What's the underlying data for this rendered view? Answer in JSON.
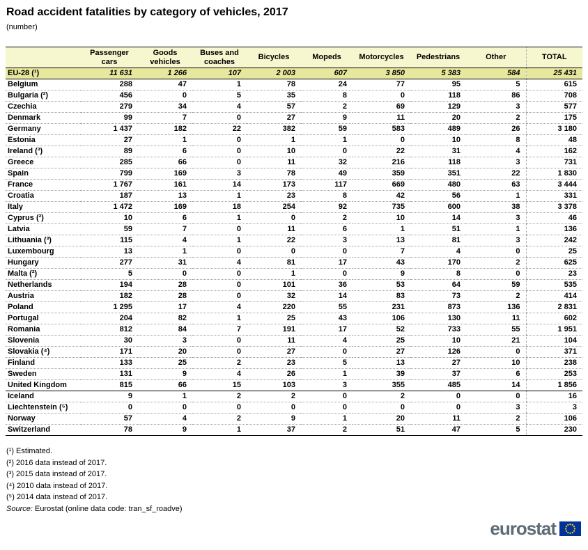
{
  "header": {
    "title": "Road accident fatalities by category of vehicles, 2017",
    "subtitle": "(number)"
  },
  "chart_data": {
    "type": "table",
    "title": "Road accident fatalities by category of vehicles, 2017",
    "unit": "number",
    "columns": [
      "Passenger cars",
      "Goods vehicles",
      "Buses and coaches",
      "Bicycles",
      "Mopeds",
      "Motorcycles",
      "Pedestrians",
      "Other",
      "TOTAL"
    ],
    "aggregate_row": {
      "label": "EU-28 (¹)",
      "values": [
        "11 631",
        "1 266",
        "107",
        "2 003",
        "607",
        "3 850",
        "5 383",
        "584",
        "25 431"
      ]
    },
    "eu_rows": [
      {
        "label": "Belgium",
        "values": [
          "288",
          "47",
          "1",
          "78",
          "24",
          "77",
          "95",
          "5",
          "615"
        ]
      },
      {
        "label": "Bulgaria (²)",
        "values": [
          "456",
          "0",
          "5",
          "35",
          "8",
          "0",
          "118",
          "86",
          "708"
        ]
      },
      {
        "label": "Czechia",
        "values": [
          "279",
          "34",
          "4",
          "57",
          "2",
          "69",
          "129",
          "3",
          "577"
        ]
      },
      {
        "label": "Denmark",
        "values": [
          "99",
          "7",
          "0",
          "27",
          "9",
          "11",
          "20",
          "2",
          "175"
        ]
      },
      {
        "label": "Germany",
        "values": [
          "1 437",
          "182",
          "22",
          "382",
          "59",
          "583",
          "489",
          "26",
          "3 180"
        ]
      },
      {
        "label": "Estonia",
        "values": [
          "27",
          "1",
          "0",
          "1",
          "1",
          "0",
          "10",
          "8",
          "48"
        ]
      },
      {
        "label": "Ireland (³)",
        "values": [
          "89",
          "6",
          "0",
          "10",
          "0",
          "22",
          "31",
          "4",
          "162"
        ]
      },
      {
        "label": "Greece",
        "values": [
          "285",
          "66",
          "0",
          "11",
          "32",
          "216",
          "118",
          "3",
          "731"
        ]
      },
      {
        "label": "Spain",
        "values": [
          "799",
          "169",
          "3",
          "78",
          "49",
          "359",
          "351",
          "22",
          "1 830"
        ]
      },
      {
        "label": "France",
        "values": [
          "1 767",
          "161",
          "14",
          "173",
          "117",
          "669",
          "480",
          "63",
          "3 444"
        ]
      },
      {
        "label": "Croatia",
        "values": [
          "187",
          "13",
          "1",
          "23",
          "8",
          "42",
          "56",
          "1",
          "331"
        ]
      },
      {
        "label": "Italy",
        "values": [
          "1 472",
          "169",
          "18",
          "254",
          "92",
          "735",
          "600",
          "38",
          "3 378"
        ]
      },
      {
        "label": "Cyprus (²)",
        "values": [
          "10",
          "6",
          "1",
          "0",
          "2",
          "10",
          "14",
          "3",
          "46"
        ]
      },
      {
        "label": "Latvia",
        "values": [
          "59",
          "7",
          "0",
          "11",
          "6",
          "1",
          "51",
          "1",
          "136"
        ]
      },
      {
        "label": "Lithuania (³)",
        "values": [
          "115",
          "4",
          "1",
          "22",
          "3",
          "13",
          "81",
          "3",
          "242"
        ]
      },
      {
        "label": "Luxembourg",
        "values": [
          "13",
          "1",
          "0",
          "0",
          "0",
          "7",
          "4",
          "0",
          "25"
        ]
      },
      {
        "label": "Hungary",
        "values": [
          "277",
          "31",
          "4",
          "81",
          "17",
          "43",
          "170",
          "2",
          "625"
        ]
      },
      {
        "label": "Malta (²)",
        "values": [
          "5",
          "0",
          "0",
          "1",
          "0",
          "9",
          "8",
          "0",
          "23"
        ]
      },
      {
        "label": "Netherlands",
        "values": [
          "194",
          "28",
          "0",
          "101",
          "36",
          "53",
          "64",
          "59",
          "535"
        ]
      },
      {
        "label": "Austria",
        "values": [
          "182",
          "28",
          "0",
          "32",
          "14",
          "83",
          "73",
          "2",
          "414"
        ]
      },
      {
        "label": "Poland",
        "values": [
          "1 295",
          "17",
          "4",
          "220",
          "55",
          "231",
          "873",
          "136",
          "2 831"
        ]
      },
      {
        "label": "Portugal",
        "values": [
          "204",
          "82",
          "1",
          "25",
          "43",
          "106",
          "130",
          "11",
          "602"
        ]
      },
      {
        "label": "Romania",
        "values": [
          "812",
          "84",
          "7",
          "191",
          "17",
          "52",
          "733",
          "55",
          "1 951"
        ]
      },
      {
        "label": "Slovenia",
        "values": [
          "30",
          "3",
          "0",
          "11",
          "4",
          "25",
          "10",
          "21",
          "104"
        ]
      },
      {
        "label": "Slovakia (⁴)",
        "values": [
          "171",
          "20",
          "0",
          "27",
          "0",
          "27",
          "126",
          "0",
          "371"
        ]
      },
      {
        "label": "Finland",
        "values": [
          "133",
          "25",
          "2",
          "23",
          "5",
          "13",
          "27",
          "10",
          "238"
        ]
      },
      {
        "label": "Sweden",
        "values": [
          "131",
          "9",
          "4",
          "26",
          "1",
          "39",
          "37",
          "6",
          "253"
        ]
      },
      {
        "label": "United Kingdom",
        "values": [
          "815",
          "66",
          "15",
          "103",
          "3",
          "355",
          "485",
          "14",
          "1 856"
        ]
      }
    ],
    "efta_rows": [
      {
        "label": "Iceland",
        "values": [
          "9",
          "1",
          "2",
          "2",
          "0",
          "2",
          "0",
          "0",
          "16"
        ]
      },
      {
        "label": "Liechtenstein (⁵)",
        "values": [
          "0",
          "0",
          "0",
          "0",
          "0",
          "0",
          "0",
          "3",
          "3"
        ]
      },
      {
        "label": "Norway",
        "values": [
          "57",
          "4",
          "2",
          "9",
          "1",
          "20",
          "11",
          "2",
          "106"
        ]
      },
      {
        "label": "Switzerland",
        "values": [
          "78",
          "9",
          "1",
          "37",
          "2",
          "51",
          "47",
          "5",
          "230"
        ]
      }
    ]
  },
  "footnotes": [
    "(¹) Estimated.",
    "(²) 2016 data instead of 2017.",
    "(³) 2015 data instead of 2017.",
    "(⁴) 2010 data instead of 2017.",
    "(⁵) 2014 data instead of 2017."
  ],
  "source": {
    "label": "Source:",
    "text": " Eurostat (online data code: tran_sf_roadve)"
  },
  "logo": {
    "text": "eurostat"
  },
  "colors": {
    "header_bg": "#F6F6CF",
    "eu28_row_bg": "#E7E79D",
    "logo_text_gray": "#5F6B74",
    "eu_flag_blue": "#003399",
    "eu_star_yellow": "#FFCC00"
  }
}
